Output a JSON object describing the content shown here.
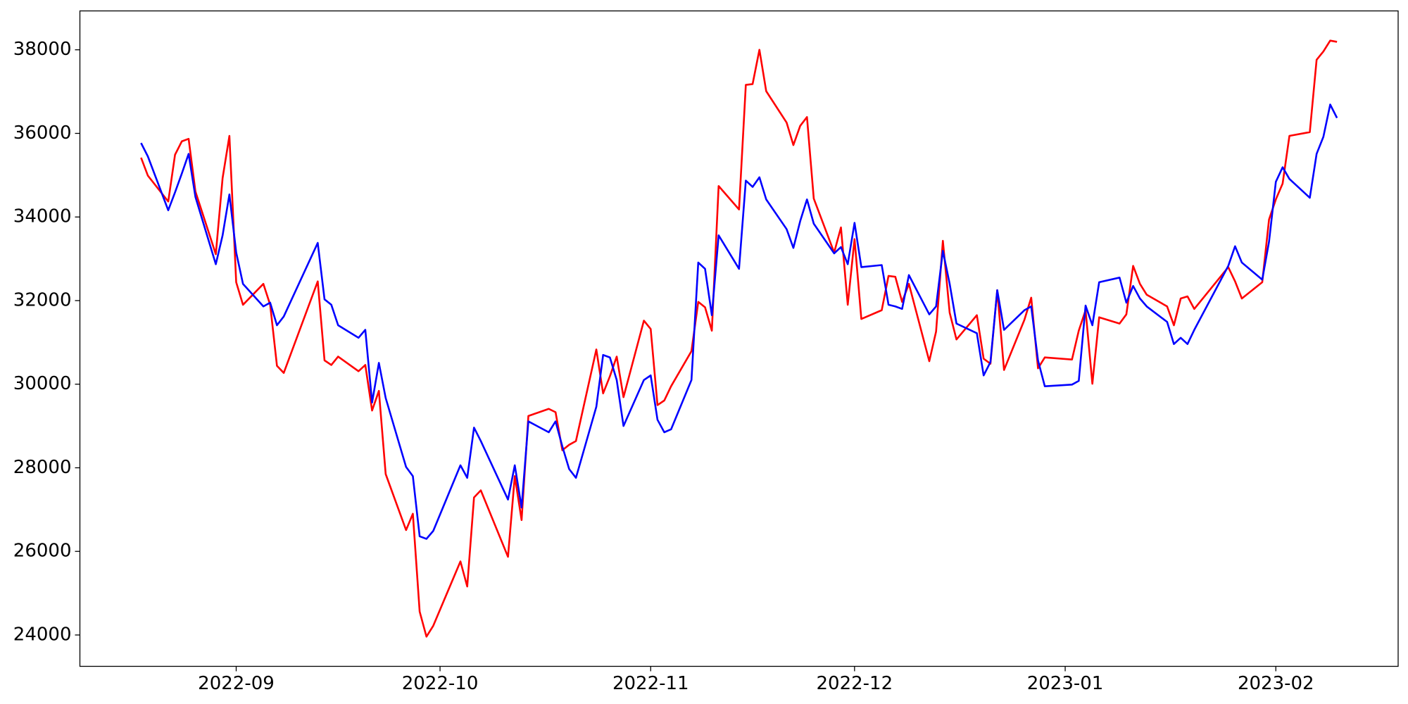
{
  "chart_data": {
    "type": "line",
    "x": [
      "2022-08-18",
      "2022-08-19",
      "2022-08-22",
      "2022-08-23",
      "2022-08-24",
      "2022-08-25",
      "2022-08-26",
      "2022-08-29",
      "2022-08-30",
      "2022-08-31",
      "2022-09-01",
      "2022-09-02",
      "2022-09-05",
      "2022-09-06",
      "2022-09-07",
      "2022-09-08",
      "2022-09-13",
      "2022-09-14",
      "2022-09-15",
      "2022-09-16",
      "2022-09-19",
      "2022-09-20",
      "2022-09-21",
      "2022-09-22",
      "2022-09-23",
      "2022-09-26",
      "2022-09-27",
      "2022-09-28",
      "2022-09-29",
      "2022-09-30",
      "2022-10-04",
      "2022-10-05",
      "2022-10-06",
      "2022-10-07",
      "2022-10-11",
      "2022-10-12",
      "2022-10-13",
      "2022-10-14",
      "2022-10-17",
      "2022-10-18",
      "2022-10-19",
      "2022-10-20",
      "2022-10-21",
      "2022-10-24",
      "2022-10-25",
      "2022-10-26",
      "2022-10-27",
      "2022-10-28",
      "2022-10-31",
      "2022-11-01",
      "2022-11-02",
      "2022-11-03",
      "2022-11-04",
      "2022-11-07",
      "2022-11-08",
      "2022-11-09",
      "2022-11-10",
      "2022-11-11",
      "2022-11-14",
      "2022-11-15",
      "2022-11-16",
      "2022-11-17",
      "2022-11-18",
      "2022-11-21",
      "2022-11-22",
      "2022-11-23",
      "2022-11-24",
      "2022-11-25",
      "2022-11-28",
      "2022-11-29",
      "2022-11-30",
      "2022-12-01",
      "2022-12-02",
      "2022-12-05",
      "2022-12-06",
      "2022-12-07",
      "2022-12-08",
      "2022-12-09",
      "2022-12-12",
      "2022-12-13",
      "2022-12-14",
      "2022-12-15",
      "2022-12-16",
      "2022-12-19",
      "2022-12-20",
      "2022-12-21",
      "2022-12-22",
      "2022-12-23",
      "2022-12-26",
      "2022-12-27",
      "2022-12-28",
      "2022-12-29",
      "2023-01-02",
      "2023-01-03",
      "2023-01-04",
      "2023-01-05",
      "2023-01-06",
      "2023-01-09",
      "2023-01-10",
      "2023-01-11",
      "2023-01-12",
      "2023-01-13",
      "2023-01-16",
      "2023-01-17",
      "2023-01-18",
      "2023-01-19",
      "2023-01-20",
      "2023-01-25",
      "2023-01-26",
      "2023-01-27",
      "2023-01-30",
      "2023-01-31",
      "2023-02-01",
      "2023-02-02",
      "2023-02-03",
      "2023-02-06",
      "2023-02-07",
      "2023-02-08",
      "2023-02-09",
      "2023-02-10"
    ],
    "series": [
      {
        "color": "#ff0000",
        "values": [
          35420,
          34990,
          34370,
          35490,
          35810,
          35870,
          34610,
          33110,
          34930,
          35940,
          32440,
          31900,
          32400,
          31900,
          30440,
          30270,
          32460,
          30570,
          30460,
          30660,
          30310,
          30460,
          29370,
          29840,
          27850,
          26510,
          26900,
          24560,
          23960,
          24220,
          25760,
          25160,
          27290,
          27460,
          25870,
          27800,
          26750,
          29240,
          29410,
          29330,
          28420,
          28550,
          28640,
          30830,
          29780,
          30190,
          30660,
          29690,
          31520,
          31320,
          29500,
          29610,
          29950,
          30790,
          31970,
          31840,
          31280,
          34740,
          34180,
          37160,
          37180,
          38000,
          37010,
          36260,
          35720,
          36180,
          36390,
          34440,
          33150,
          33750,
          31900,
          33470,
          31560,
          31770,
          32590,
          32570,
          31970,
          32400,
          30550,
          31260,
          33430,
          31710,
          31070,
          31650,
          30610,
          30490,
          32250,
          30340,
          31540,
          32070,
          30380,
          30640,
          30590,
          31280,
          31770,
          30010,
          31600,
          31450,
          31670,
          32830,
          32400,
          32140,
          31860,
          31410,
          32050,
          32100,
          31800,
          32800,
          32460,
          32050,
          32440,
          33940,
          34420,
          34800,
          35940,
          36030,
          37760,
          37960,
          38220,
          38190
        ]
      },
      {
        "color": "#0000ff",
        "values": [
          35770,
          35450,
          34160,
          34590,
          35040,
          35510,
          34480,
          32870,
          33560,
          34540,
          33150,
          32400,
          31860,
          31950,
          31410,
          31620,
          33380,
          32030,
          31900,
          31410,
          31110,
          31300,
          29560,
          30510,
          29670,
          28020,
          27800,
          26360,
          26300,
          26490,
          28060,
          27760,
          28960,
          28640,
          27240,
          28060,
          27050,
          29110,
          28850,
          29110,
          28510,
          27970,
          27760,
          29460,
          30700,
          30640,
          30100,
          29000,
          30100,
          30210,
          29150,
          28850,
          28920,
          30100,
          32910,
          32760,
          31650,
          33560,
          32760,
          34870,
          34720,
          34950,
          34420,
          33710,
          33260,
          33900,
          34420,
          33840,
          33130,
          33280,
          32870,
          33860,
          32800,
          32850,
          31900,
          31860,
          31800,
          32610,
          31670,
          31860,
          33190,
          32400,
          31450,
          31220,
          30210,
          30530,
          32250,
          31300,
          31770,
          31860,
          30570,
          29950,
          29990,
          30080,
          31880,
          31410,
          32440,
          32550,
          31950,
          32350,
          32050,
          31860,
          31490,
          30960,
          31110,
          30960,
          31300,
          32830,
          33300,
          32910,
          32500,
          33410,
          34840,
          35190,
          34910,
          34460,
          35510,
          35920,
          36690,
          36370
        ]
      }
    ],
    "xlim": [
      "2022-08-09",
      "2023-02-19"
    ],
    "xticks": [
      {
        "value": "2022-09-01",
        "label": "2022-09"
      },
      {
        "value": "2022-10-01",
        "label": "2022-10"
      },
      {
        "value": "2022-11-01",
        "label": "2022-11"
      },
      {
        "value": "2022-12-01",
        "label": "2022-12"
      },
      {
        "value": "2023-01-01",
        "label": "2023-01"
      },
      {
        "value": "2023-02-01",
        "label": "2023-02"
      }
    ],
    "ylim": [
      23250,
      38930
    ],
    "yticks": [
      24000,
      26000,
      28000,
      30000,
      32000,
      34000,
      36000,
      38000
    ],
    "grid": false
  }
}
